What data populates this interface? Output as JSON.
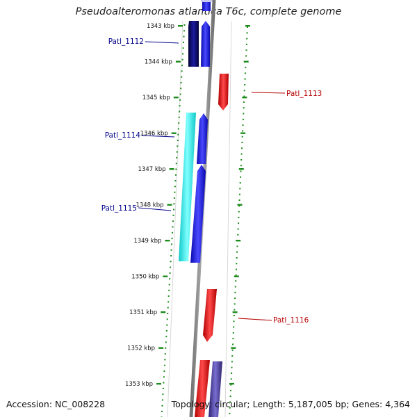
{
  "title": "Pseudoalteromonas atlantica T6c, complete genome",
  "accession": "Accession: NC_008228",
  "topology": "Topology: circular; Length: 5,187,005 bp; Genes: 4,364",
  "ruler": {
    "ticks": [
      "1343 kbp",
      "1344 kbp",
      "1345 kbp",
      "1346 kbp",
      "1347 kbp",
      "1348 kbp",
      "1349 kbp",
      "1350 kbp",
      "1351 kbp",
      "1352 kbp",
      "1353 kbp"
    ]
  },
  "colors": {
    "backbone": "#8c8c8c",
    "tick_green": "#1a8a1a",
    "forward_dark": "#0a0a6e",
    "forward_blue": "#1414e6",
    "forward_cyan": "#19e6e6",
    "reverse_red": "#e61414",
    "reverse_purple": "#4a3d9a",
    "label_blue": "#00008b",
    "label_red": "#b40000"
  },
  "gene_labels": [
    {
      "name": "Patl_1112",
      "side": "left"
    },
    {
      "name": "Patl_1113",
      "side": "right"
    },
    {
      "name": "Patl_1114",
      "side": "left"
    },
    {
      "name": "Patl_1115",
      "side": "left"
    },
    {
      "name": "Patl_1116",
      "side": "right"
    }
  ]
}
